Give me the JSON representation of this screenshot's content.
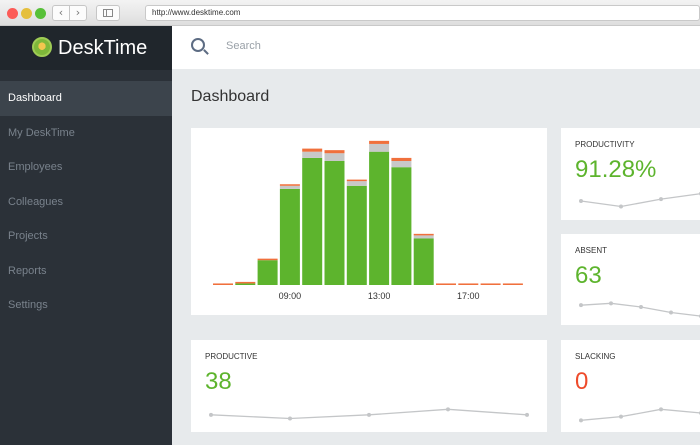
{
  "browser": {
    "url": "http://www.desktime.com",
    "back_icon": "‹",
    "forward_icon": "›"
  },
  "brand": {
    "name": "DeskTime"
  },
  "sidebar": {
    "items": [
      {
        "label": "Dashboard",
        "active": true
      },
      {
        "label": "My DeskTime",
        "active": false
      },
      {
        "label": "Employees",
        "active": false
      },
      {
        "label": "Colleagues",
        "active": false
      },
      {
        "label": "Projects",
        "active": false
      },
      {
        "label": "Reports",
        "active": false
      },
      {
        "label": "Settings",
        "active": false
      }
    ]
  },
  "search": {
    "placeholder": "Search"
  },
  "page": {
    "title": "Dashboard"
  },
  "colors": {
    "green": "#5db42d",
    "red": "#ee4b2b",
    "orange": "#f0703c",
    "gray_top": "#c8c8c8",
    "spark": "#c4c6c8"
  },
  "chart_data": {
    "type": "bar",
    "stacked": true,
    "x_tick_labels": [
      "09:00",
      "13:00",
      "17:00"
    ],
    "x_tick_bar_index": [
      3,
      7,
      11
    ],
    "ylim": [
      0,
      100
    ],
    "grid": false,
    "series": [
      {
        "values": [
          0,
          1,
          16,
          62,
          82,
          80,
          64,
          86,
          76,
          30,
          0,
          0,
          0,
          0
        ]
      },
      {
        "values": [
          0,
          0,
          0,
          2,
          4,
          5,
          3,
          5,
          4,
          2,
          0,
          0,
          0,
          0
        ]
      },
      {
        "values": [
          1,
          1,
          1,
          1,
          2,
          2,
          1,
          2,
          2,
          1,
          1,
          1,
          1,
          1
        ]
      }
    ]
  },
  "cards": {
    "productivity": {
      "label": "PRODUCTIVITY",
      "value": "91.28%",
      "trend": [
        12,
        6,
        14,
        20
      ]
    },
    "absent": {
      "label": "ABSENT",
      "value": "63",
      "trend": [
        14,
        16,
        12,
        6,
        2
      ]
    },
    "productive": {
      "label": "PRODUCTIVE",
      "value": "38",
      "trend": [
        10,
        6,
        10,
        16,
        10
      ]
    },
    "slacking": {
      "label": "SLACKING",
      "value": "0",
      "trend": [
        4,
        8,
        16,
        12
      ]
    }
  }
}
